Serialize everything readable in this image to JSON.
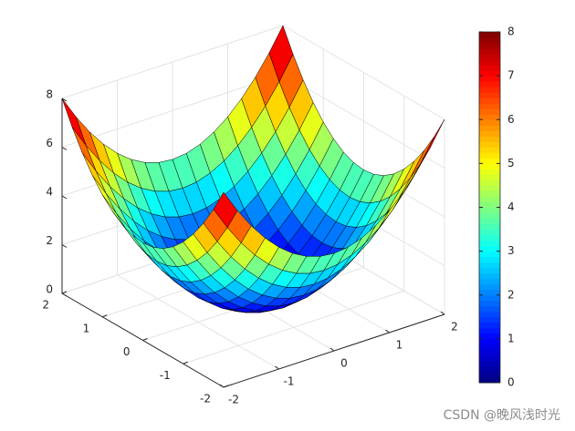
{
  "chart_data": {
    "type": "surface",
    "x": [
      -2,
      -1.75,
      -1.5,
      -1.25,
      -1,
      -0.75,
      -0.5,
      -0.25,
      0,
      0.25,
      0.5,
      0.75,
      1,
      1.25,
      1.5,
      1.75,
      2
    ],
    "y": [
      -2,
      -1.75,
      -1.5,
      -1.25,
      -1,
      -0.75,
      -0.5,
      -0.25,
      0,
      0.25,
      0.5,
      0.75,
      1,
      1.25,
      1.5,
      1.75,
      2
    ],
    "z": [
      [
        8,
        7.0625,
        6.25,
        5.5625,
        5,
        4.5625,
        4.25,
        4.0625,
        4,
        4.0625,
        4.25,
        4.5625,
        5,
        5.5625,
        6.25,
        7.0625,
        8
      ],
      [
        7.0625,
        6.125,
        5.3125,
        4.625,
        4.0625,
        3.625,
        3.3125,
        3.125,
        3.0625,
        3.125,
        3.3125,
        3.625,
        4.0625,
        4.625,
        5.3125,
        6.125,
        7.0625
      ],
      [
        6.25,
        5.3125,
        4.5,
        3.8125,
        3.25,
        2.8125,
        2.5,
        2.3125,
        2.25,
        2.3125,
        2.5,
        2.8125,
        3.25,
        3.8125,
        4.5,
        5.3125,
        6.25
      ],
      [
        5.5625,
        4.625,
        3.8125,
        3.125,
        2.5625,
        2.125,
        1.8125,
        1.625,
        1.5625,
        1.625,
        1.8125,
        2.125,
        2.5625,
        3.125,
        3.8125,
        4.625,
        5.5625
      ],
      [
        5,
        4.0625,
        3.25,
        2.5625,
        2,
        1.5625,
        1.25,
        1.0625,
        1,
        1.0625,
        1.25,
        1.5625,
        2,
        2.5625,
        3.25,
        4.0625,
        5
      ],
      [
        4.5625,
        3.625,
        2.8125,
        2.125,
        1.5625,
        1.125,
        0.8125,
        0.625,
        0.5625,
        0.625,
        0.8125,
        1.125,
        1.5625,
        2.125,
        2.8125,
        3.625,
        4.5625
      ],
      [
        4.25,
        3.3125,
        2.5,
        1.8125,
        1.25,
        0.8125,
        0.5,
        0.3125,
        0.25,
        0.3125,
        0.5,
        0.8125,
        1.25,
        1.8125,
        2.5,
        3.3125,
        4.25
      ],
      [
        4.0625,
        3.125,
        2.3125,
        1.625,
        1.0625,
        0.625,
        0.3125,
        0.125,
        0.0625,
        0.125,
        0.3125,
        0.625,
        1.0625,
        1.625,
        2.3125,
        3.125,
        4.0625
      ],
      [
        4,
        3.0625,
        2.25,
        1.5625,
        1,
        0.5625,
        0.25,
        0.0625,
        0,
        0.0625,
        0.25,
        0.5625,
        1,
        1.5625,
        2.25,
        3.0625,
        4
      ],
      [
        4.0625,
        3.125,
        2.3125,
        1.625,
        1.0625,
        0.625,
        0.3125,
        0.125,
        0.0625,
        0.125,
        0.3125,
        0.625,
        1.0625,
        1.625,
        2.3125,
        3.125,
        4.0625
      ],
      [
        4.25,
        3.3125,
        2.5,
        1.8125,
        1.25,
        0.8125,
        0.5,
        0.3125,
        0.25,
        0.3125,
        0.5,
        0.8125,
        1.25,
        1.8125,
        2.5,
        3.3125,
        4.25
      ],
      [
        4.5625,
        3.625,
        2.8125,
        2.125,
        1.5625,
        1.125,
        0.8125,
        0.625,
        0.5625,
        0.625,
        0.8125,
        1.125,
        1.5625,
        2.125,
        2.8125,
        3.625,
        4.5625
      ],
      [
        5,
        4.0625,
        3.25,
        2.5625,
        2,
        1.5625,
        1.25,
        1.0625,
        1,
        1.0625,
        1.25,
        1.5625,
        2,
        2.5625,
        3.25,
        4.0625,
        5
      ],
      [
        5.5625,
        4.625,
        3.8125,
        3.125,
        2.5625,
        2.125,
        1.8125,
        1.625,
        1.5625,
        1.625,
        1.8125,
        2.125,
        2.5625,
        3.125,
        3.8125,
        4.625,
        5.5625
      ],
      [
        6.25,
        5.3125,
        4.5,
        3.8125,
        3.25,
        2.8125,
        2.5,
        2.3125,
        2.25,
        2.3125,
        2.5,
        2.8125,
        3.25,
        3.8125,
        4.5,
        5.3125,
        6.25
      ],
      [
        7.0625,
        6.125,
        5.3125,
        4.625,
        4.0625,
        3.625,
        3.3125,
        3.125,
        3.0625,
        3.125,
        3.3125,
        3.625,
        4.0625,
        4.625,
        5.3125,
        6.125,
        7.0625
      ],
      [
        8,
        7.0625,
        6.25,
        5.5625,
        5,
        4.5625,
        4.25,
        4.0625,
        4,
        4.0625,
        4.25,
        4.5625,
        5,
        5.5625,
        6.25,
        7.0625,
        8
      ]
    ],
    "xlim": [
      -2,
      2
    ],
    "ylim": [
      -2,
      2
    ],
    "zlim": [
      0,
      8
    ],
    "xticks": [
      -2,
      -1,
      0,
      1,
      2
    ],
    "yticks": [
      -2,
      -1,
      0,
      1,
      2
    ],
    "zticks": [
      0,
      2,
      4,
      6,
      8
    ],
    "grid": true,
    "colormap": "jet",
    "edge_color": "#000000",
    "colorbar": {
      "clim": [
        0,
        8
      ],
      "ticks": [
        0,
        1,
        2,
        3,
        4,
        5,
        6,
        7,
        8
      ]
    }
  },
  "watermark": "CSDN @晚风浅时光"
}
